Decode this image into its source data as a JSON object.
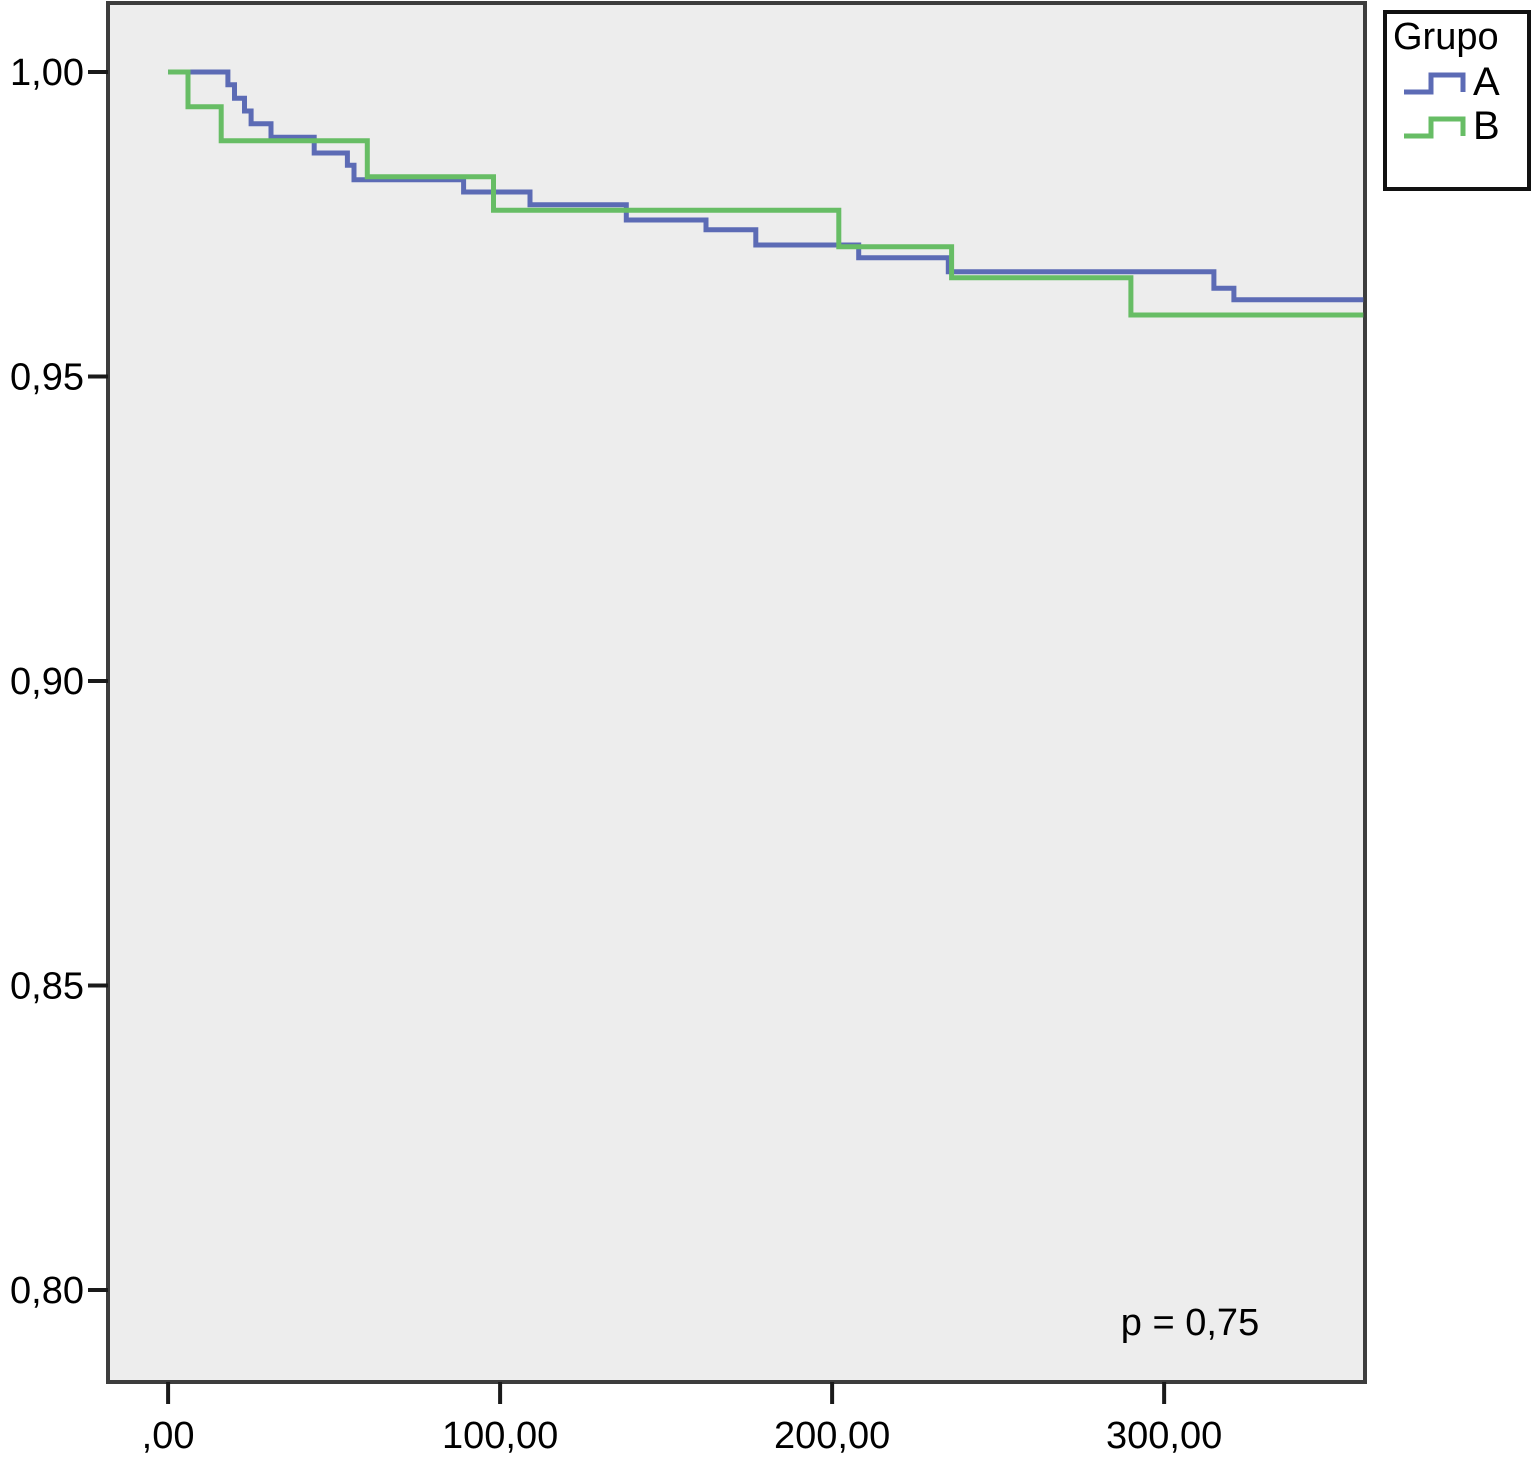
{
  "chart_data": {
    "type": "line",
    "variant": "kaplan-meier-step-survival",
    "title": "",
    "xlabel": "",
    "ylabel": "",
    "grid": false,
    "plot_bg": "#ededed",
    "border_color": "#3d3d3d",
    "tick_color": "#1a1a1a",
    "label_color": "#000000",
    "legend": {
      "position": "top-right-outside",
      "title": "Grupo",
      "entries": [
        {
          "label": "A"
        },
        {
          "label": "B"
        }
      ]
    },
    "annotation": {
      "text": "p = 0,75"
    },
    "x_axis": {
      "range": [
        -18.1,
        360.5
      ],
      "ticks": [
        {
          "v": 0,
          "label": ",00"
        },
        {
          "v": 100,
          "label": "100,00"
        },
        {
          "v": 200,
          "label": "200,00"
        },
        {
          "v": 300,
          "label": "300,00"
        }
      ]
    },
    "y_axis": {
      "range": [
        0.7849,
        1.01133
      ],
      "ticks": [
        {
          "v": 1.0,
          "label": "1,00"
        },
        {
          "v": 0.95,
          "label": "0,95"
        },
        {
          "v": 0.9,
          "label": "0,90"
        },
        {
          "v": 0.85,
          "label": "0,85"
        },
        {
          "v": 0.8,
          "label": "0,80"
        }
      ]
    },
    "series": [
      {
        "name": "A",
        "color": "#5c6bb5",
        "steps": [
          [
            0,
            1.0
          ],
          [
            18,
            0.9979
          ],
          [
            20,
            0.9957
          ],
          [
            23,
            0.9936
          ],
          [
            25,
            0.9915
          ],
          [
            31,
            0.9893
          ],
          [
            44,
            0.9867
          ],
          [
            54,
            0.9847
          ],
          [
            56,
            0.9823
          ],
          [
            89,
            0.9803
          ],
          [
            109,
            0.9782
          ],
          [
            138,
            0.9757
          ],
          [
            162,
            0.9741
          ],
          [
            177,
            0.9716
          ],
          [
            208,
            0.9695
          ],
          [
            235,
            0.9672
          ],
          [
            315,
            0.9645
          ],
          [
            321,
            0.9626
          ],
          [
            360,
            0.9626
          ]
        ]
      },
      {
        "name": "B",
        "color": "#67bd65",
        "steps": [
          [
            0,
            1.0
          ],
          [
            6,
            0.9943
          ],
          [
            16,
            0.9887
          ],
          [
            60,
            0.9828
          ],
          [
            98,
            0.9773
          ],
          [
            202,
            0.9713
          ],
          [
            236,
            0.9662
          ],
          [
            290,
            0.9601
          ],
          [
            360,
            0.9601
          ]
        ]
      }
    ]
  }
}
